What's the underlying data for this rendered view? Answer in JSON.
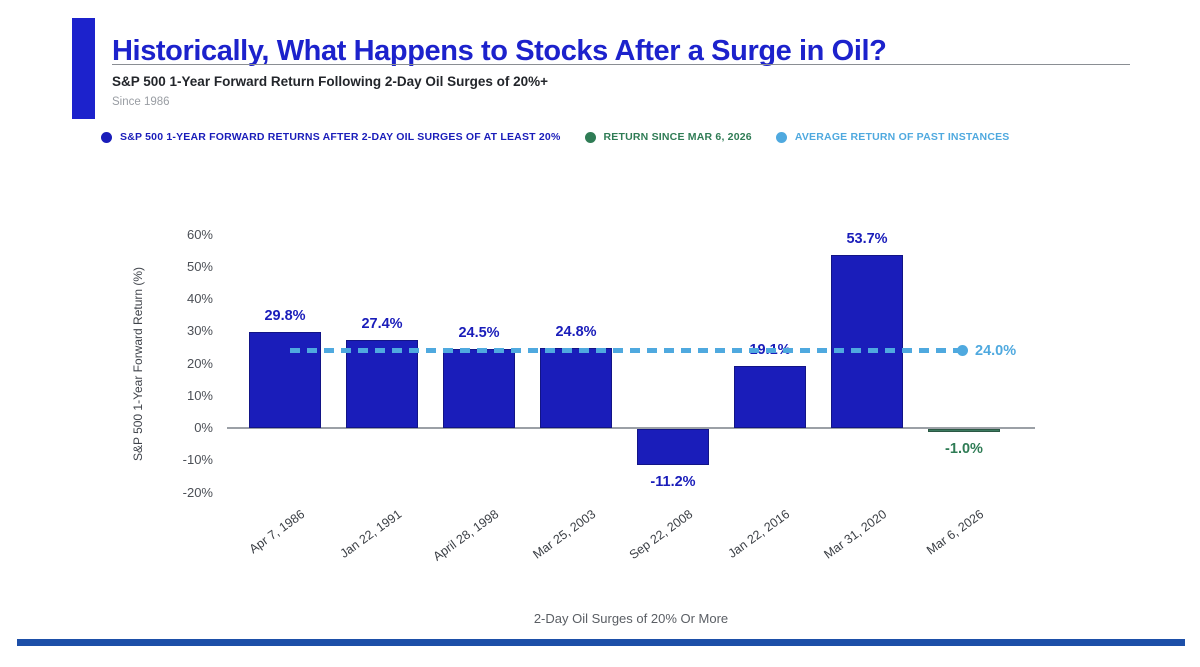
{
  "header": {
    "title": "Historically, What Happens to Stocks After a Surge in Oil?",
    "subtitle": "S&P 500 1-Year Forward Return Following 2-Day Oil Surges of 20%+",
    "since": "Since 1986"
  },
  "legend": {
    "items": [
      {
        "label": "S&P 500 1-YEAR FORWARD RETURNS AFTER 2-DAY OIL SURGES OF AT LEAST 20%",
        "color": "#1a1dba"
      },
      {
        "label": "RETURN SINCE MAR 6, 2026",
        "color": "#2f7c55"
      },
      {
        "label": "AVERAGE RETURN OF PAST INSTANCES",
        "color": "#4fa9df"
      }
    ]
  },
  "chart_data": {
    "type": "bar",
    "categories": [
      "Apr 7, 1986",
      "Jan 22, 1991",
      "April 28, 1998",
      "Mar 25, 2003",
      "Sep 22, 2008",
      "Jan 22, 2016",
      "Mar 31, 2020",
      "Mar 6, 2026"
    ],
    "values": [
      29.8,
      27.4,
      24.5,
      24.8,
      -11.2,
      19.1,
      53.7,
      -1.0
    ],
    "bar_labels": [
      "29.8%",
      "27.4%",
      "24.5%",
      "24.8%",
      "-11.2%",
      "19.1%",
      "53.7%",
      "-1.0%"
    ],
    "bar_colors": [
      "#1a1dba",
      "#1a1dba",
      "#1a1dba",
      "#1a1dba",
      "#1a1dba",
      "#1a1dba",
      "#1a1dba",
      "#3c7a5f"
    ],
    "label_colors": [
      "#1a1dba",
      "#1a1dba",
      "#1a1dba",
      "#1a1dba",
      "#1a1dba",
      "#1a1dba",
      "#1a1dba",
      "#2f7c55"
    ],
    "average_line": {
      "value": 24.0,
      "label": "24.0%",
      "color": "#4fa9df"
    },
    "xlabel": "2-Day Oil Surges of 20% Or More",
    "ylabel": "S&P 500 1-Year Forward Return (%)",
    "yticks": [
      60,
      50,
      40,
      30,
      20,
      10,
      0,
      -10,
      -20
    ],
    "ytick_labels": [
      "60%",
      "50%",
      "40%",
      "30%",
      "20%",
      "10%",
      "0%",
      "-10%",
      "-20%"
    ],
    "ylim": [
      -25,
      65
    ],
    "grid": false,
    "legend_position": "top"
  },
  "colors": {
    "brand_blue": "#1c22cc",
    "bar_blue": "#1a1dba",
    "green": "#2f7c55",
    "light_blue": "#4fa9df",
    "footer_strip": "#1d4fa8"
  }
}
